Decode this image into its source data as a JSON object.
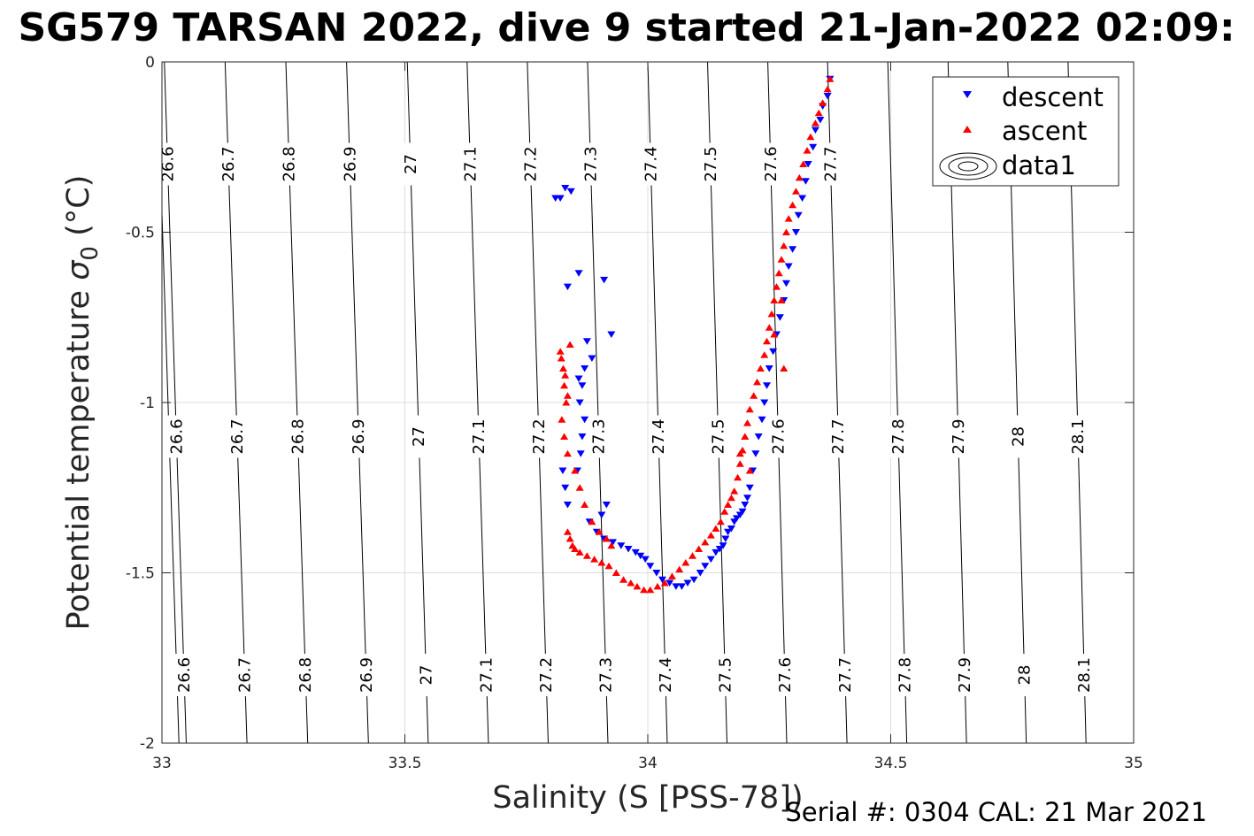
{
  "chart_data": {
    "type": "scatter",
    "title": "SG579 TARSAN 2022, dive 9 started 21-Jan-2022 02:09:",
    "xlabel": "Salinity (S [PSS-78])",
    "ylabel": "Potential temperature",
    "ylabel_symbol": "σ",
    "ylabel_subscript": "0",
    "ylabel_unit": "(°C)",
    "xlim": [
      33,
      35
    ],
    "ylim": [
      -2,
      0
    ],
    "xticks": [
      33,
      33.5,
      34,
      34.5,
      35
    ],
    "xtick_labels": [
      "33",
      "33.5",
      "34",
      "34.5",
      "35"
    ],
    "yticks": [
      0,
      -0.5,
      -1,
      -1.5,
      -2
    ],
    "ytick_labels": [
      "0",
      "-0.5",
      "-1",
      "-1.5",
      "-2"
    ],
    "grid": true,
    "legend_position": "top-right",
    "density_contours": [
      {
        "label": "26.6",
        "x_at_top": 33.005,
        "x_at_bottom": 33.05,
        "label_ys": [
          -0.3,
          -1.1,
          -1.8
        ]
      },
      {
        "label": "26.7",
        "x_at_top": 33.13,
        "x_at_bottom": 33.175,
        "label_ys": [
          -0.3,
          -1.1,
          -1.8
        ]
      },
      {
        "label": "26.8",
        "x_at_top": 33.255,
        "x_at_bottom": 33.3,
        "label_ys": [
          -0.3,
          -1.1,
          -1.8
        ]
      },
      {
        "label": "26.9",
        "x_at_top": 33.38,
        "x_at_bottom": 33.425,
        "label_ys": [
          -0.3,
          -1.1,
          -1.8
        ]
      },
      {
        "label": "27",
        "x_at_top": 33.505,
        "x_at_bottom": 33.548,
        "label_ys": [
          -0.3,
          -1.1,
          -1.8
        ]
      },
      {
        "label": "27.1",
        "x_at_top": 33.628,
        "x_at_bottom": 33.672,
        "label_ys": [
          -0.3,
          -1.1,
          -1.8
        ]
      },
      {
        "label": "27.2",
        "x_at_top": 33.752,
        "x_at_bottom": 33.795,
        "label_ys": [
          -0.3,
          -1.1,
          -1.8
        ]
      },
      {
        "label": "27.3",
        "x_at_top": 33.876,
        "x_at_bottom": 33.918,
        "label_ys": [
          -0.3,
          -1.1,
          -1.8
        ]
      },
      {
        "label": "27.4",
        "x_at_top": 34.0,
        "x_at_bottom": 34.04,
        "label_ys": [
          -0.3,
          -1.1,
          -1.8
        ]
      },
      {
        "label": "27.5",
        "x_at_top": 34.123,
        "x_at_bottom": 34.163,
        "label_ys": [
          -0.3,
          -1.1,
          -1.8
        ]
      },
      {
        "label": "27.6",
        "x_at_top": 34.247,
        "x_at_bottom": 34.286,
        "label_ys": [
          -0.3,
          -1.1,
          -1.8
        ]
      },
      {
        "label": "27.7",
        "x_at_top": 34.37,
        "x_at_bottom": 34.41,
        "label_ys": [
          -0.3,
          -1.1,
          -1.8
        ]
      },
      {
        "label": "27.8",
        "x_at_top": 34.494,
        "x_at_bottom": 34.533,
        "label_ys": [
          -1.1,
          -1.8
        ]
      },
      {
        "label": "27.9",
        "x_at_top": 34.618,
        "x_at_bottom": 34.656,
        "label_ys": [
          -1.1,
          -1.8
        ]
      },
      {
        "label": "28",
        "x_at_top": 34.741,
        "x_at_bottom": 34.779,
        "label_ys": [
          -1.1,
          -1.8
        ]
      },
      {
        "label": "28.1",
        "x_at_top": 34.865,
        "x_at_bottom": 34.902,
        "label_ys": [
          -0.3,
          -1.1,
          -1.8
        ]
      },
      {
        "label": "",
        "x_at_top": 32.99,
        "x_at_bottom": 33.035,
        "label_ys": []
      }
    ],
    "series": [
      {
        "name": "descent",
        "color": "#0000ff",
        "marker": "triangle-down",
        "x": [
          34.375,
          34.37,
          34.36,
          34.355,
          34.345,
          34.34,
          34.33,
          34.325,
          34.318,
          34.31,
          34.305,
          34.298,
          34.29,
          34.285,
          34.28,
          34.272,
          34.265,
          34.258,
          34.25,
          34.245,
          34.24,
          34.235,
          34.228,
          34.222,
          34.216,
          34.21,
          34.205,
          34.2,
          34.195,
          34.19,
          34.183,
          34.178,
          34.172,
          34.165,
          34.16,
          34.155,
          34.148,
          34.14,
          34.13,
          34.118,
          34.108,
          34.095,
          34.082,
          34.07,
          34.058,
          34.045,
          34.03,
          34.018,
          34.005,
          33.995,
          33.985,
          33.975,
          33.96,
          33.945,
          33.928,
          33.91,
          33.895,
          33.88,
          33.865,
          33.87,
          33.86,
          33.865,
          33.858,
          33.862,
          33.855,
          33.87,
          33.885,
          33.875,
          33.858,
          33.835,
          33.842,
          33.83,
          33.82,
          33.81,
          33.835,
          33.83,
          33.825,
          33.915,
          33.905,
          33.925,
          33.91
        ],
        "y": [
          -0.05,
          -0.1,
          -0.13,
          -0.17,
          -0.2,
          -0.25,
          -0.3,
          -0.35,
          -0.4,
          -0.45,
          -0.5,
          -0.55,
          -0.6,
          -0.65,
          -0.7,
          -0.75,
          -0.8,
          -0.85,
          -0.9,
          -0.95,
          -1.0,
          -1.05,
          -1.1,
          -1.15,
          -1.2,
          -1.25,
          -1.28,
          -1.3,
          -1.32,
          -1.33,
          -1.34,
          -1.35,
          -1.37,
          -1.38,
          -1.4,
          -1.42,
          -1.43,
          -1.44,
          -1.46,
          -1.48,
          -1.5,
          -1.52,
          -1.53,
          -1.54,
          -1.54,
          -1.53,
          -1.52,
          -1.5,
          -1.48,
          -1.46,
          -1.45,
          -1.44,
          -1.43,
          -1.42,
          -1.41,
          -1.4,
          -1.38,
          -1.35,
          -1.1,
          -1.05,
          -1.0,
          -0.95,
          -0.93,
          -1.15,
          -1.2,
          -0.9,
          -0.87,
          -0.82,
          -0.62,
          -0.66,
          -0.38,
          -0.37,
          -0.4,
          -0.4,
          -1.3,
          -1.25,
          -1.2,
          -1.3,
          -1.33,
          -0.8,
          -0.64
        ]
      },
      {
        "name": "ascent",
        "color": "#ff0000",
        "marker": "triangle-up",
        "x": [
          34.375,
          34.37,
          34.36,
          34.352,
          34.345,
          34.335,
          34.328,
          34.32,
          34.312,
          34.305,
          34.298,
          34.29,
          34.285,
          34.28,
          34.275,
          34.27,
          34.265,
          34.26,
          34.255,
          34.25,
          34.245,
          34.24,
          34.232,
          34.225,
          34.218,
          34.21,
          34.205,
          34.2,
          34.195,
          34.19,
          34.185,
          34.178,
          34.172,
          34.165,
          34.158,
          34.15,
          34.14,
          34.13,
          34.118,
          34.105,
          34.092,
          34.078,
          34.065,
          34.05,
          34.035,
          34.02,
          34.005,
          33.992,
          33.978,
          33.965,
          33.95,
          33.935,
          33.92,
          33.905,
          33.89,
          33.875,
          33.86,
          33.85,
          33.845,
          33.84,
          33.835,
          33.832,
          33.828,
          33.826,
          33.822,
          33.82,
          33.823,
          33.828,
          33.835,
          33.85,
          33.86,
          33.87,
          33.885,
          33.9,
          33.915,
          33.925,
          33.84,
          33.83,
          33.835,
          34.275,
          34.26,
          34.28,
          34.2,
          34.19,
          34.21
        ],
        "y": [
          -0.05,
          -0.08,
          -0.12,
          -0.15,
          -0.18,
          -0.22,
          -0.26,
          -0.3,
          -0.34,
          -0.38,
          -0.42,
          -0.46,
          -0.5,
          -0.54,
          -0.58,
          -0.62,
          -0.66,
          -0.7,
          -0.74,
          -0.78,
          -0.82,
          -0.86,
          -0.9,
          -0.94,
          -0.98,
          -1.02,
          -1.06,
          -1.1,
          -1.14,
          -1.18,
          -1.22,
          -1.26,
          -1.28,
          -1.3,
          -1.32,
          -1.35,
          -1.37,
          -1.39,
          -1.41,
          -1.43,
          -1.45,
          -1.47,
          -1.49,
          -1.51,
          -1.53,
          -1.54,
          -1.55,
          -1.55,
          -1.54,
          -1.53,
          -1.52,
          -1.5,
          -1.48,
          -1.47,
          -1.46,
          -1.45,
          -1.44,
          -1.43,
          -1.42,
          -1.4,
          -1.38,
          -1.0,
          -0.95,
          -0.9,
          -0.87,
          -0.85,
          -1.05,
          -1.1,
          -1.15,
          -1.2,
          -1.25,
          -1.3,
          -1.35,
          -1.38,
          -1.4,
          -1.42,
          -0.83,
          -0.92,
          -0.98,
          -0.7,
          -0.8,
          -0.9,
          -1.1,
          -1.15,
          -1.2
        ]
      }
    ],
    "legend": {
      "entries": [
        "descent",
        "ascent",
        "data1"
      ]
    },
    "footer": "Serial #: 0304  CAL: 21 Mar 2021"
  }
}
